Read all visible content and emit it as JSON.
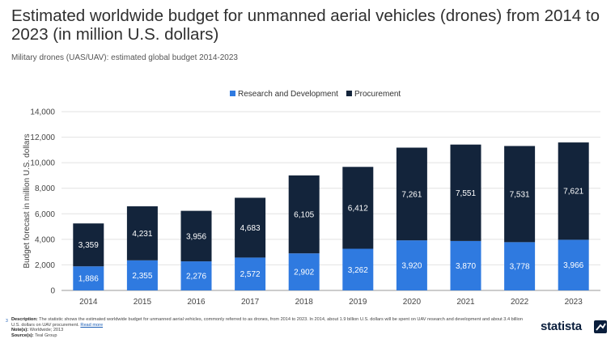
{
  "title": "Estimated worldwide budget for unmanned aerial vehicles (drones) from 2014 to 2023 (in million U.S. dollars)",
  "subtitle": "Military drones (UAS/UAV): estimated global budget 2014-2023",
  "colors": {
    "rnd": "#2f7ae0",
    "procurement": "#13243b"
  },
  "chart_data": {
    "type": "bar",
    "stacked": true,
    "categories": [
      "2014",
      "2015",
      "2016",
      "2017",
      "2018",
      "2019",
      "2020",
      "2021",
      "2022",
      "2023"
    ],
    "series": [
      {
        "name": "Research and Development",
        "values": [
          1886,
          2355,
          2276,
          2572,
          2902,
          3262,
          3920,
          3870,
          3778,
          3966
        ]
      },
      {
        "name": "Procurement",
        "values": [
          3359,
          4231,
          3956,
          4683,
          6105,
          6412,
          7261,
          7551,
          7531,
          7621
        ]
      }
    ],
    "value_labels": {
      "Research and Development": [
        "1,886",
        "2,355",
        "2,276",
        "2,572",
        "2,902",
        "3,262",
        "3,920",
        "3,870",
        "3,778",
        "3,966"
      ],
      "Procurement": [
        "3,359",
        "4,231",
        "3,956",
        "4,683",
        "6,105",
        "6,412",
        "7,261",
        "7,551",
        "7,531",
        "7,621"
      ]
    },
    "ylabel": "Budget forecast in million U.S. dollars",
    "xlabel": "",
    "ylim": [
      0,
      14000
    ],
    "yticks": [
      0,
      2000,
      4000,
      6000,
      8000,
      10000,
      12000,
      14000
    ],
    "ytick_labels": [
      "0",
      "2,000",
      "4,000",
      "6,000",
      "8,000",
      "10,000",
      "12,000",
      "14,000"
    ],
    "legend_position": "top-center",
    "grid": true
  },
  "footer": {
    "page_marker": "3",
    "description_label": "Description:",
    "description": "The statistic shows the estimated worldwide budget for unmanned aerial vehicles, commonly referred to as drones, from 2014 to 2023. In 2014, about 1.9 billion U.S. dollars will be spent on UAV research and development and about 3.4 billion U.S. dollars on UAV procurement.",
    "read_more": "Read more",
    "notes_label": "Note(s):",
    "notes": "Worldwide; 2013",
    "source_label": "Source(s):",
    "source": "Teal Group"
  },
  "brand": "statista"
}
